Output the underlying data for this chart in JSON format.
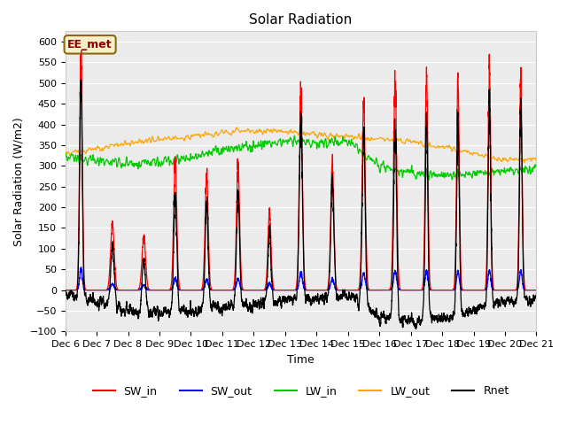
{
  "title": "Solar Radiation",
  "ylabel": "Solar Radiation (W/m2)",
  "xlabel": "Time",
  "ylim": [
    -100,
    625
  ],
  "yticks": [
    -100,
    -50,
    0,
    50,
    100,
    150,
    200,
    250,
    300,
    350,
    400,
    450,
    500,
    550,
    600
  ],
  "bg_color": "#e8e8e8",
  "plot_bg_color": "#ebebeb",
  "annotation_text": "EE_met",
  "annotation_color": "#8B0000",
  "annotation_bg": "#f5f0c8",
  "legend_entries": [
    "SW_in",
    "SW_out",
    "LW_in",
    "LW_out",
    "Rnet"
  ],
  "line_colors": {
    "SW_in": "#ff0000",
    "SW_out": "#0000ff",
    "LW_in": "#00cc00",
    "LW_out": "#ffa500",
    "Rnet": "#000000"
  },
  "n_days": 15,
  "start_day": 6,
  "points_per_day": 288,
  "SW_peak_heights": [
    580,
    160,
    130,
    310,
    280,
    305,
    185,
    470,
    305,
    450,
    505,
    515,
    515,
    515,
    510
  ],
  "SW_peak_widths": [
    0.06,
    0.08,
    0.08,
    0.07,
    0.07,
    0.07,
    0.07,
    0.07,
    0.07,
    0.07,
    0.07,
    0.06,
    0.06,
    0.06,
    0.06
  ],
  "LW_out_base": [
    330,
    340,
    355,
    365,
    370,
    380,
    385,
    385,
    375,
    370,
    365,
    360,
    345,
    330,
    315
  ],
  "LW_in_base": [
    320,
    315,
    305,
    310,
    320,
    340,
    350,
    360,
    355,
    360,
    300,
    285,
    275,
    280,
    290
  ],
  "night_Rnet": -25
}
